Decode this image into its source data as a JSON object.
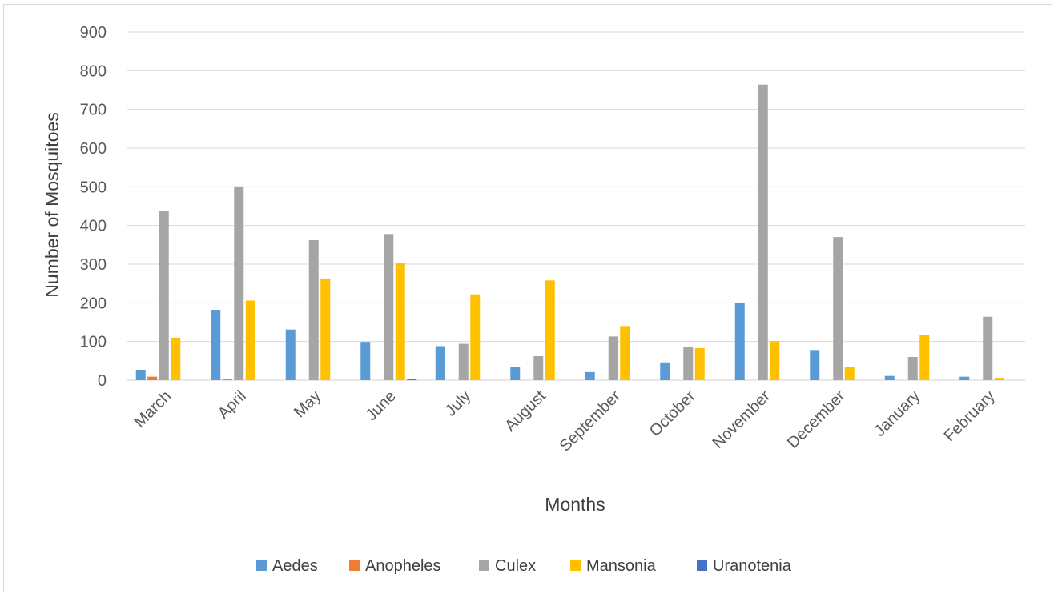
{
  "chart_data": {
    "type": "bar",
    "title": "",
    "xlabel": "Months",
    "ylabel": "Number of Mosquitoes",
    "ylim": [
      0,
      900
    ],
    "yticks": [
      0,
      100,
      200,
      300,
      400,
      500,
      600,
      700,
      800,
      900
    ],
    "grid": true,
    "legend_position": "bottom",
    "categories": [
      "March",
      "April",
      "May",
      "June",
      "July",
      "August",
      "September",
      "October",
      "November",
      "December",
      "January",
      "February"
    ],
    "series": [
      {
        "name": "Aedes",
        "color": "#5b9bd5",
        "values": [
          27,
          182,
          131,
          99,
          88,
          34,
          21,
          46,
          200,
          78,
          11,
          9
        ]
      },
      {
        "name": "Anopheles",
        "color": "#ed7d31",
        "values": [
          9,
          3,
          0,
          0,
          0,
          0,
          0,
          0,
          0,
          0,
          0,
          0
        ]
      },
      {
        "name": "Culex",
        "color": "#a5a5a5",
        "values": [
          437,
          501,
          362,
          378,
          94,
          62,
          113,
          87,
          764,
          370,
          60,
          164
        ]
      },
      {
        "name": "Mansonia",
        "color": "#ffc000",
        "values": [
          110,
          206,
          263,
          302,
          222,
          258,
          140,
          83,
          101,
          34,
          116,
          6
        ]
      },
      {
        "name": "Uranotenia",
        "color": "#4472c4",
        "values": [
          0,
          0,
          0,
          3,
          0,
          0,
          0,
          0,
          0,
          0,
          0,
          0
        ]
      }
    ]
  }
}
